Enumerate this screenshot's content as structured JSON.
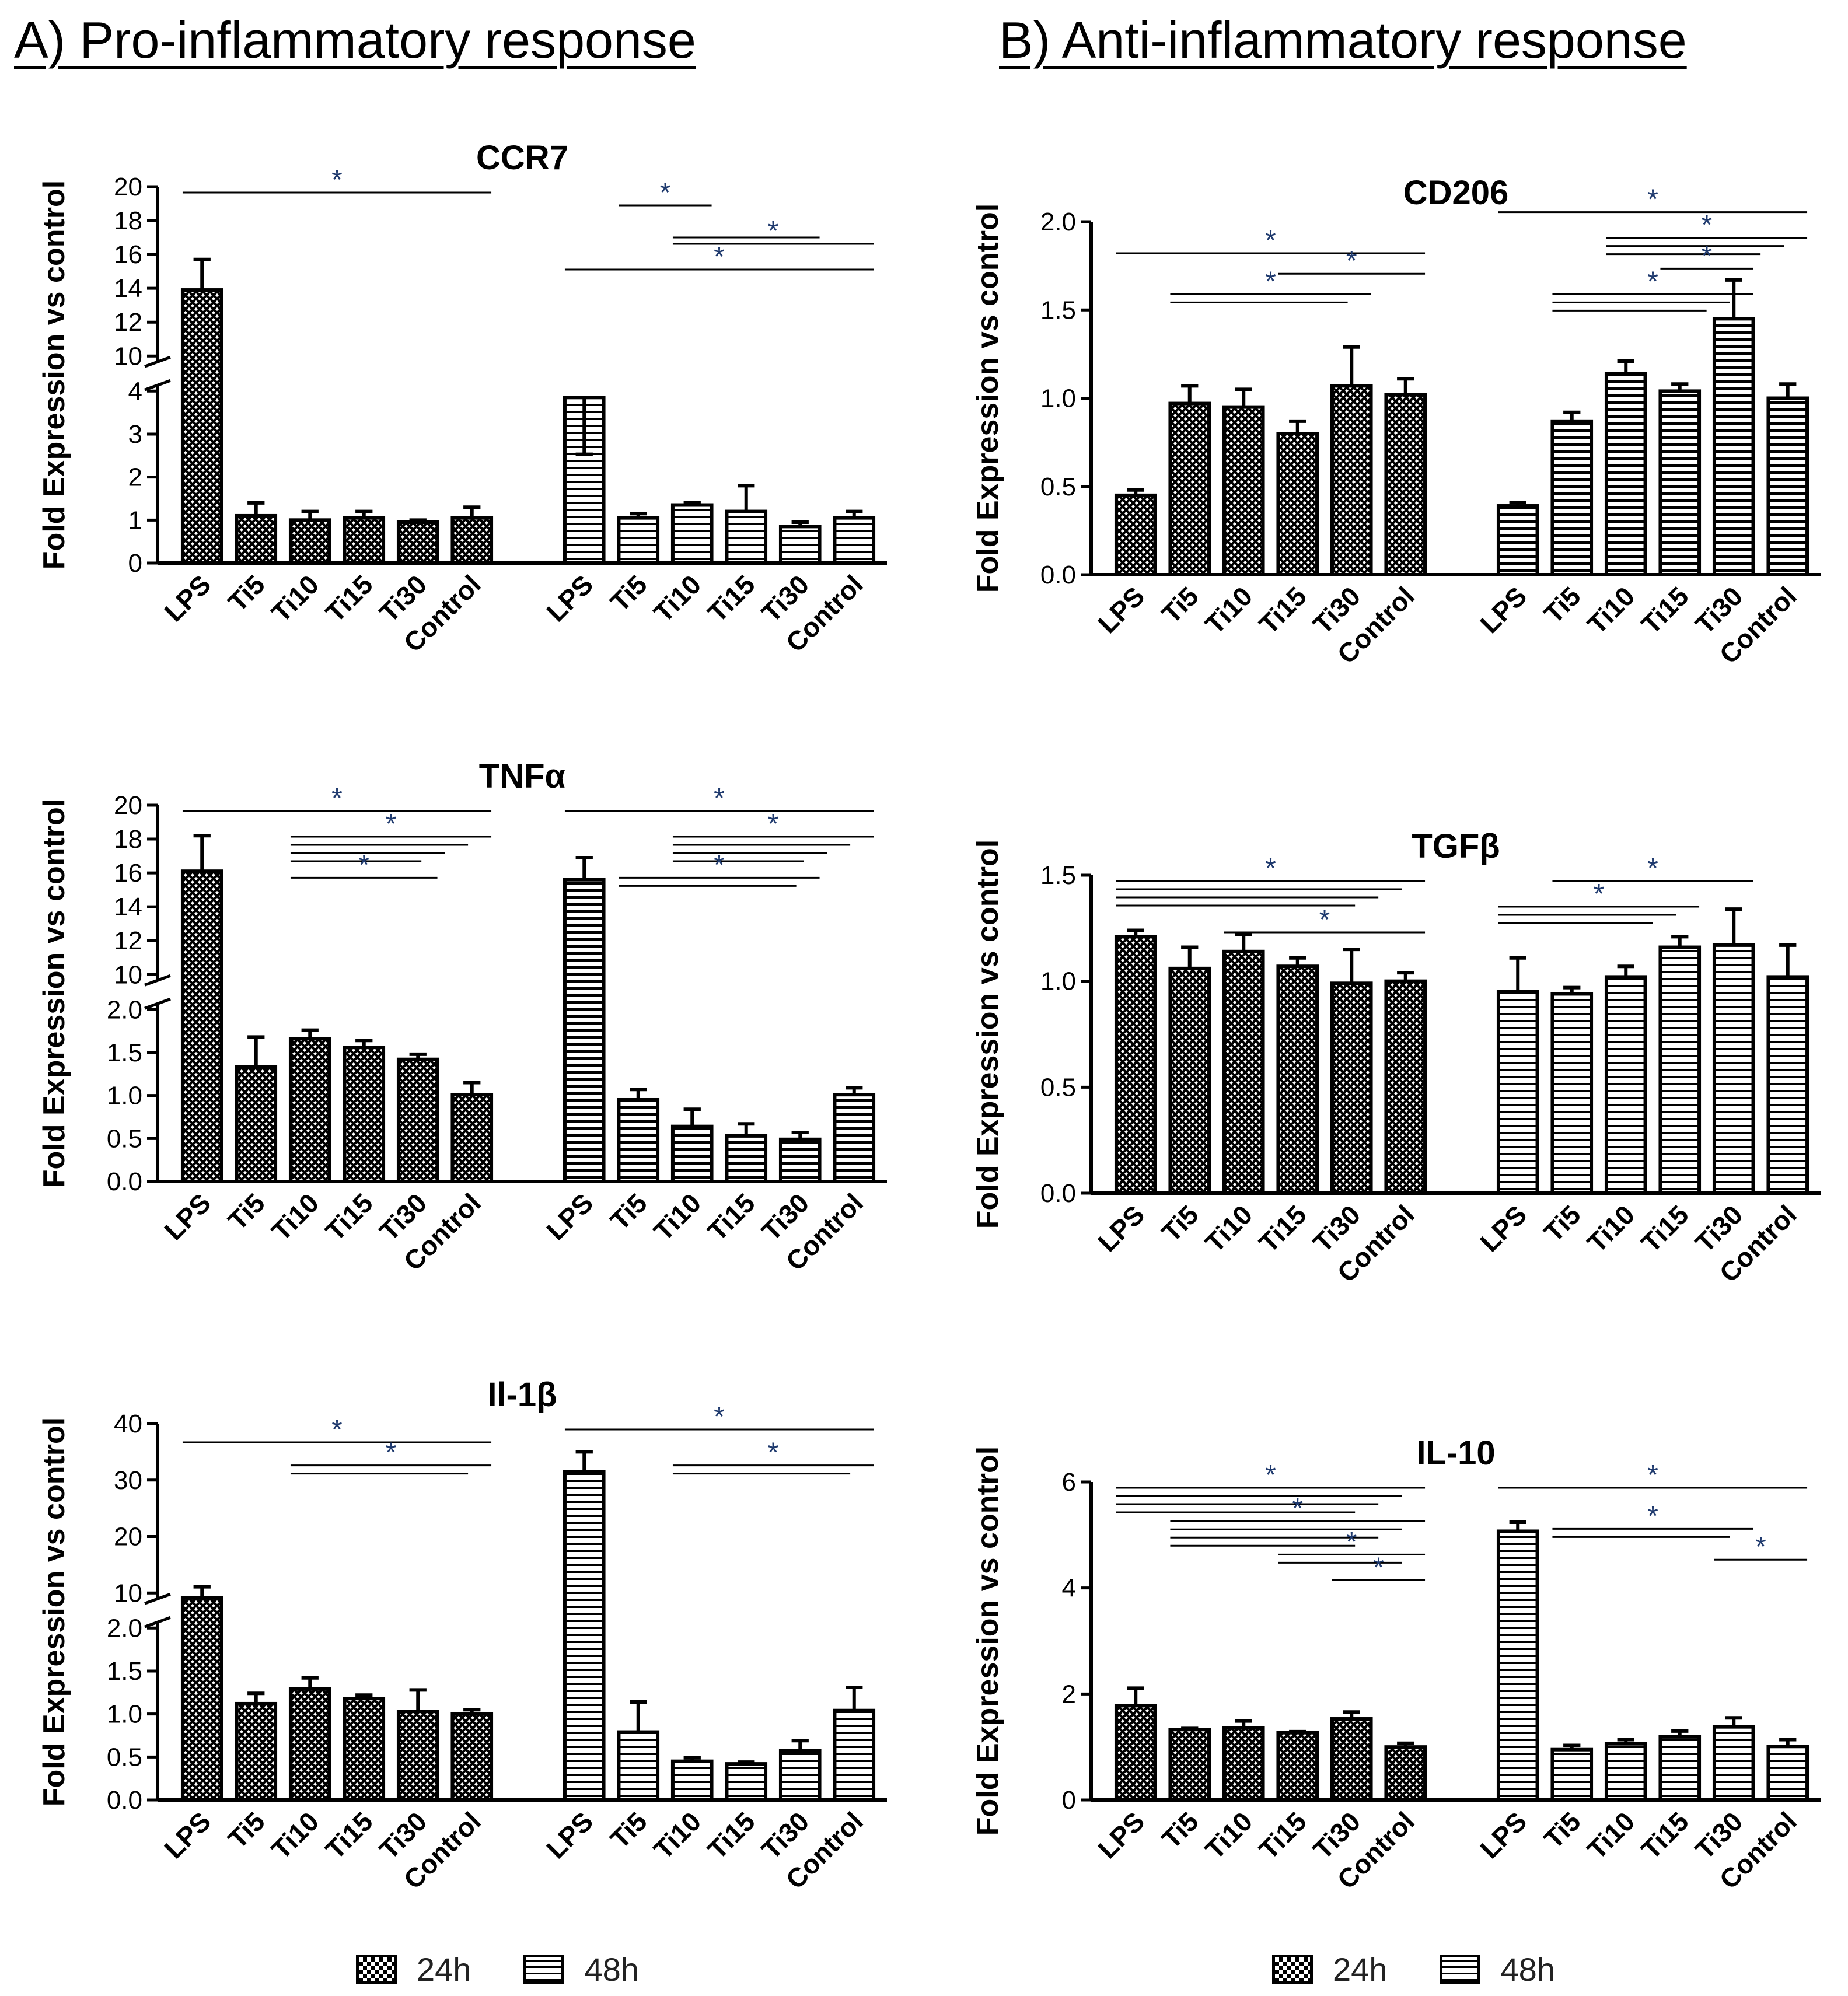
{
  "sections": {
    "a_title": "A) Pro-inflammatory response",
    "b_title": "B) Anti-inflammatory response"
  },
  "legend": {
    "label_24h": "24h",
    "label_48h": "48h"
  },
  "colors": {
    "bars": "#000000",
    "significance_star": "#1f3a6e",
    "background": "#ffffff"
  },
  "chart_data": [
    {
      "id": "ccr7",
      "type": "bar",
      "title": "CCR7",
      "ylabel": "Fold Expression vs control",
      "categories": [
        "LPS",
        "Ti5",
        "Ti10",
        "Ti15",
        "Ti30",
        "Control"
      ],
      "axis_break": {
        "lower_range": [
          0,
          4
        ],
        "upper_range": [
          10,
          20
        ],
        "lower_ticks": [
          "0",
          "1",
          "2",
          "3",
          "4"
        ],
        "upper_ticks": [
          "10",
          "12",
          "14",
          "16",
          "18",
          "20"
        ]
      },
      "series": [
        {
          "name": "24h",
          "pattern": "crosshatch",
          "values": [
            13.9,
            1.1,
            1.0,
            1.05,
            0.95,
            1.05
          ],
          "errors": [
            1.8,
            0.3,
            0.2,
            0.15,
            0.05,
            0.25
          ]
        },
        {
          "name": "48h",
          "pattern": "horizontal",
          "values": [
            3.85,
            1.05,
            1.35,
            1.2,
            0.85,
            1.05
          ],
          "errors": [
            0.35,
            0.1,
            0.05,
            0.6,
            0.1,
            0.15
          ]
        }
      ],
      "annotations": [
        {
          "series": 0,
          "from": 0,
          "to": 5,
          "lines": 1,
          "label": "*",
          "level": 0
        },
        {
          "series": 1,
          "from": 0,
          "to": 5,
          "lines": 1,
          "label": "*",
          "level": 3
        },
        {
          "series": 1,
          "from": 2,
          "to": 5,
          "lines": 1,
          "label": "*",
          "level": 2
        },
        {
          "series": 1,
          "from": 2,
          "to": 4,
          "lines": 1,
          "label": "",
          "level": 1.75
        },
        {
          "series": 1,
          "from": 1,
          "to": 2,
          "lines": 1,
          "label": "*",
          "level": 0.5
        }
      ]
    },
    {
      "id": "tnfa",
      "type": "bar",
      "title": "TNFα",
      "ylabel": "Fold Expression vs control",
      "categories": [
        "LPS",
        "Ti5",
        "Ti10",
        "Ti15",
        "Ti30",
        "Control"
      ],
      "axis_break": {
        "lower_range": [
          0,
          2
        ],
        "upper_range": [
          10,
          20
        ],
        "lower_ticks": [
          "0.0",
          "0.5",
          "1.0",
          "1.5",
          "2.0"
        ],
        "upper_ticks": [
          "10",
          "12",
          "14",
          "16",
          "18",
          "20"
        ]
      },
      "series": [
        {
          "name": "24h",
          "pattern": "crosshatch",
          "values": [
            16.1,
            1.33,
            1.66,
            1.56,
            1.42,
            1.01
          ],
          "errors": [
            2.1,
            0.35,
            0.1,
            0.08,
            0.06,
            0.14
          ]
        },
        {
          "name": "48h",
          "pattern": "horizontal",
          "values": [
            15.6,
            0.95,
            0.64,
            0.53,
            0.49,
            1.01
          ],
          "errors": [
            1.3,
            0.12,
            0.2,
            0.14,
            0.08,
            0.08
          ]
        }
      ],
      "annotations": [
        {
          "series": 0,
          "from": 0,
          "to": 5,
          "lines": 1,
          "label": "*",
          "level": 0
        },
        {
          "series": 0,
          "from": 2,
          "to": 5,
          "lines": 4,
          "label": "*",
          "level": 1
        },
        {
          "series": 0,
          "from": 2,
          "to": 4,
          "lines": 1,
          "label": "*",
          "level": 2.6
        },
        {
          "series": 1,
          "from": 0,
          "to": 5,
          "lines": 1,
          "label": "*",
          "level": 0
        },
        {
          "series": 1,
          "from": 2,
          "to": 5,
          "lines": 4,
          "label": "*",
          "level": 1
        },
        {
          "series": 1,
          "from": 1,
          "to": 4,
          "lines": 2,
          "label": "*",
          "level": 2.6
        }
      ]
    },
    {
      "id": "il1b",
      "type": "bar",
      "title": "Il-1β",
      "ylabel": "Fold Expression vs control",
      "categories": [
        "LPS",
        "Ti5",
        "Ti10",
        "Ti15",
        "Ti30",
        "Control"
      ],
      "axis_break": {
        "lower_range": [
          0,
          2
        ],
        "upper_range": [
          10,
          40
        ],
        "lower_ticks": [
          "0.0",
          "0.5",
          "1.0",
          "1.5",
          "2.0"
        ],
        "upper_ticks": [
          "10",
          "20",
          "30",
          "40"
        ]
      },
      "series": [
        {
          "name": "24h",
          "pattern": "crosshatch",
          "values": [
            9.1,
            1.12,
            1.29,
            1.18,
            1.03,
            1.0
          ],
          "errors": [
            2.0,
            0.12,
            0.13,
            0.04,
            0.25,
            0.05
          ]
        },
        {
          "name": "48h",
          "pattern": "horizontal",
          "values": [
            31.5,
            0.79,
            0.45,
            0.42,
            0.57,
            1.04
          ],
          "errors": [
            3.5,
            0.35,
            0.04,
            0.02,
            0.12,
            0.27
          ]
        }
      ],
      "annotations": [
        {
          "series": 0,
          "from": 0,
          "to": 5,
          "lines": 1,
          "label": "*",
          "level": 0.5
        },
        {
          "series": 0,
          "from": 2,
          "to": 5,
          "lines": 2,
          "label": "*",
          "level": 1.4
        },
        {
          "series": 1,
          "from": 0,
          "to": 5,
          "lines": 1,
          "label": "*",
          "level": 0
        },
        {
          "series": 1,
          "from": 2,
          "to": 5,
          "lines": 2,
          "label": "*",
          "level": 1.4
        }
      ]
    },
    {
      "id": "cd206",
      "type": "bar",
      "title": "CD206",
      "ylabel": "Fold Expression vs control",
      "categories": [
        "LPS",
        "Ti5",
        "Ti10",
        "Ti15",
        "Ti30",
        "Control"
      ],
      "ylim": [
        0,
        2.0
      ],
      "yticks": [
        "0.0",
        "0.5",
        "1.0",
        "1.5",
        "2.0"
      ],
      "series": [
        {
          "name": "24h",
          "pattern": "crosshatch",
          "values": [
            0.45,
            0.97,
            0.95,
            0.8,
            1.07,
            1.02
          ],
          "errors": [
            0.03,
            0.1,
            0.1,
            0.07,
            0.22,
            0.09
          ]
        },
        {
          "name": "48h",
          "pattern": "horizontal",
          "values": [
            0.39,
            0.87,
            1.14,
            1.04,
            1.45,
            1.0
          ],
          "errors": [
            0.02,
            0.05,
            0.07,
            0.04,
            0.22,
            0.08
          ]
        }
      ],
      "annotations": [
        {
          "series": 0,
          "from": 0,
          "to": 5,
          "lines": 1,
          "label": "*",
          "level": 1
        },
        {
          "series": 0,
          "from": 3,
          "to": 5,
          "lines": 1,
          "label": "*",
          "level": 1.8
        },
        {
          "series": 0,
          "from": 1,
          "to": 4,
          "lines": 2,
          "label": "*",
          "level": 2.6
        },
        {
          "series": 1,
          "from": 0,
          "to": 5,
          "lines": 1,
          "label": "*",
          "level": -0.6
        },
        {
          "series": 1,
          "from": 2,
          "to": 5,
          "lines": 3,
          "label": "*",
          "level": 0.4
        },
        {
          "series": 1,
          "from": 3,
          "to": 4,
          "lines": 1,
          "label": "*",
          "level": 1.6
        },
        {
          "series": 1,
          "from": 1,
          "to": 4,
          "lines": 3,
          "label": "*",
          "level": 2.6
        }
      ]
    },
    {
      "id": "tgfb",
      "type": "bar",
      "title": "TGFβ",
      "ylabel": "Fold Expression vs control",
      "categories": [
        "LPS",
        "Ti5",
        "Ti10",
        "Ti15",
        "Ti30",
        "Control"
      ],
      "ylim": [
        0,
        1.5
      ],
      "yticks": [
        "0.0",
        "0.5",
        "1.0",
        "1.5"
      ],
      "series": [
        {
          "name": "24h",
          "pattern": "crosshatch",
          "values": [
            1.21,
            1.06,
            1.14,
            1.07,
            0.99,
            1.0
          ],
          "errors": [
            0.03,
            0.1,
            0.08,
            0.04,
            0.16,
            0.04
          ]
        },
        {
          "name": "48h",
          "pattern": "horizontal",
          "values": [
            0.95,
            0.94,
            1.02,
            1.16,
            1.17,
            1.02
          ],
          "errors": [
            0.16,
            0.03,
            0.05,
            0.05,
            0.17,
            0.15
          ]
        }
      ],
      "annotations": [
        {
          "series": 0,
          "from": 0,
          "to": 5,
          "lines": 4,
          "label": "*",
          "level": 0
        },
        {
          "series": 0,
          "from": 2,
          "to": 5,
          "lines": 1,
          "label": "*",
          "level": 2
        },
        {
          "series": 1,
          "from": 1,
          "to": 4,
          "lines": 1,
          "label": "*",
          "level": 0
        },
        {
          "series": 1,
          "from": 0,
          "to": 3,
          "lines": 3,
          "label": "*",
          "level": 1
        }
      ]
    },
    {
      "id": "il10",
      "type": "bar",
      "title": "IL-10",
      "ylabel": "Fold Expression vs control",
      "categories": [
        "LPS",
        "Ti5",
        "Ti10",
        "Ti15",
        "Ti30",
        "Control"
      ],
      "ylim": [
        0,
        6
      ],
      "yticks": [
        "0",
        "2",
        "4",
        "6"
      ],
      "series": [
        {
          "name": "24h",
          "pattern": "crosshatch",
          "values": [
            1.78,
            1.33,
            1.36,
            1.27,
            1.53,
            1.0
          ],
          "errors": [
            0.33,
            0.02,
            0.13,
            0.02,
            0.13,
            0.07
          ]
        },
        {
          "name": "48h",
          "pattern": "horizontal",
          "values": [
            5.07,
            0.95,
            1.06,
            1.19,
            1.38,
            1.01
          ],
          "errors": [
            0.17,
            0.08,
            0.08,
            0.11,
            0.17,
            0.13
          ]
        }
      ],
      "annotations": [
        {
          "series": 0,
          "from": 0,
          "to": 5,
          "lines": 4,
          "label": "*",
          "level": 0
        },
        {
          "series": 0,
          "from": 1,
          "to": 5,
          "lines": 4,
          "label": "*",
          "level": 1.3
        },
        {
          "series": 0,
          "from": 3,
          "to": 5,
          "lines": 2,
          "label": "*",
          "level": 2.6
        },
        {
          "series": 0,
          "from": 4,
          "to": 5,
          "lines": 1,
          "label": "*",
          "level": 3.6
        },
        {
          "series": 1,
          "from": 0,
          "to": 5,
          "lines": 1,
          "label": "*",
          "level": 0
        },
        {
          "series": 1,
          "from": 1,
          "to": 4,
          "lines": 2,
          "label": "*",
          "level": 1.6
        },
        {
          "series": 1,
          "from": 4,
          "to": 5,
          "lines": 1,
          "label": "*",
          "level": 2.8
        }
      ]
    }
  ]
}
